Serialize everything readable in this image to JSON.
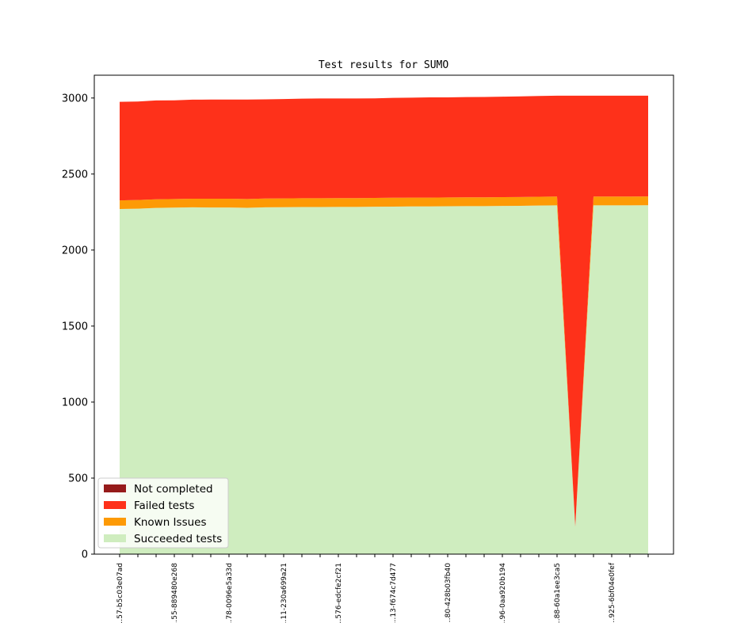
{
  "chart_data": {
    "type": "area",
    "stacked": true,
    "title": "Test results for SUMO",
    "xlabel": "",
    "ylabel": "",
    "ylim": [
      0,
      3150
    ],
    "yticks": [
      0,
      500,
      1000,
      1500,
      2000,
      2500,
      3000
    ],
    "grid": false,
    "legend_position": "lower-left",
    "n_points": 30,
    "x_tick_labels": [
      "…57-b5c03e07ad",
      "…55-889480e268",
      "…78-0096e5a33d",
      "…11-230a699a21",
      "…576-edcfe2cf21",
      "…13-f674c7d477",
      "…80-428b03fb40",
      "…96-0aa920b194",
      "…88-60a1ee3ca5",
      "…925-6bf04e0fef"
    ],
    "x_tick_label_indices": [
      0,
      3,
      6,
      9,
      12,
      15,
      18,
      21,
      24,
      27
    ],
    "series": [
      {
        "name": "Succeeded tests",
        "color": "#cfedbf",
        "values": [
          2270,
          2272,
          2277,
          2279,
          2281,
          2280,
          2280,
          2278,
          2281,
          2282,
          2283,
          2283,
          2284,
          2284,
          2285,
          2286,
          2287,
          2287,
          2288,
          2289,
          2289,
          2290,
          2291,
          2293,
          2294,
          180,
          2294,
          2294,
          2294,
          2295
        ]
      },
      {
        "name": "Known Issues",
        "color": "#fd9a05",
        "values": [
          57,
          57,
          57,
          57,
          57,
          58,
          58,
          58,
          58,
          58,
          58,
          58,
          58,
          58,
          58,
          58,
          58,
          58,
          58,
          58,
          58,
          58,
          58,
          58,
          58,
          2,
          58,
          58,
          58,
          58
        ]
      },
      {
        "name": "Failed tests",
        "color": "#fe311a",
        "values": [
          648,
          648,
          650,
          649,
          651,
          652,
          652,
          654,
          652,
          653,
          655,
          656,
          655,
          655,
          655,
          657,
          657,
          659,
          658,
          659,
          660,
          661,
          662,
          662,
          663,
          2833,
          663,
          663,
          663,
          662
        ]
      },
      {
        "name": "Not completed",
        "color": "#961b1b",
        "values": [
          0,
          0,
          0,
          0,
          0,
          0,
          0,
          0,
          0,
          0,
          0,
          0,
          0,
          0,
          0,
          0,
          0,
          0,
          0,
          0,
          0,
          0,
          0,
          0,
          0,
          0,
          0,
          0,
          0,
          0
        ]
      }
    ],
    "legend": [
      "Not completed",
      "Failed tests",
      "Known Issues",
      "Succeeded tests"
    ]
  }
}
